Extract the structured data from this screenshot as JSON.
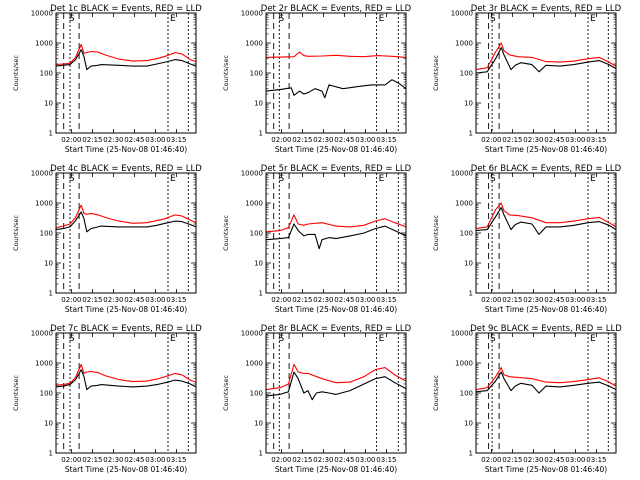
{
  "chart_data": [
    {
      "type": "line",
      "title": "Det 1c BLACK = Events, RED = LLD",
      "xlabel": "Start Time (25-Nov-08 01:46:40)",
      "ylabel": "Counts/sec",
      "yscale": "log",
      "ylim": [
        1,
        10000
      ],
      "yticks": [
        "1",
        "10",
        "100",
        "1000",
        "10000"
      ],
      "xticks": [
        "02:00",
        "02:15",
        "02:30",
        "02:45",
        "03:00",
        "03:15"
      ],
      "markers": [
        "S",
        "E"
      ],
      "series": [
        {
          "color": "#ff0000",
          "x": [
            0,
            0.05,
            0.1,
            0.14,
            0.18,
            0.2,
            0.22,
            0.25,
            0.3,
            0.35,
            0.45,
            0.55,
            0.65,
            0.72,
            0.78,
            0.85,
            0.9,
            0.96,
            1
          ],
          "y": [
            190,
            200,
            210,
            330,
            900,
            450,
            480,
            520,
            500,
            400,
            290,
            250,
            260,
            300,
            360,
            480,
            430,
            280,
            240
          ]
        },
        {
          "color": "#000000",
          "x": [
            0,
            0.05,
            0.1,
            0.14,
            0.18,
            0.2,
            0.22,
            0.25,
            0.3,
            0.32,
            0.45,
            0.55,
            0.65,
            0.72,
            0.78,
            0.85,
            0.9,
            0.96,
            1
          ],
          "y": [
            170,
            180,
            190,
            280,
            600,
            350,
            130,
            170,
            180,
            190,
            180,
            170,
            170,
            200,
            230,
            280,
            260,
            200,
            170
          ]
        }
      ]
    },
    {
      "type": "line",
      "title": "Det 2r BLACK = Events, RED = LLD",
      "xlabel": "Start Time (25-Nov-08 01:46:40)",
      "ylabel": "Counts/sec",
      "yscale": "log",
      "ylim": [
        1,
        10000
      ],
      "yticks": [
        "1",
        "10",
        "100",
        "1000",
        "10000"
      ],
      "xticks": [
        "02:00",
        "02:15",
        "02:30",
        "02:45",
        "03:00",
        "03:15"
      ],
      "markers": [
        "S",
        "E"
      ],
      "series": [
        {
          "color": "#ff0000",
          "x": [
            0,
            0.1,
            0.2,
            0.24,
            0.27,
            0.3,
            0.4,
            0.5,
            0.6,
            0.7,
            0.8,
            0.9,
            1
          ],
          "y": [
            330,
            340,
            350,
            500,
            380,
            360,
            370,
            390,
            360,
            350,
            380,
            360,
            330
          ]
        },
        {
          "color": "#000000",
          "x": [
            0,
            0.1,
            0.18,
            0.2,
            0.24,
            0.27,
            0.3,
            0.35,
            0.4,
            0.42,
            0.45,
            0.55,
            0.65,
            0.75,
            0.85,
            0.9,
            0.95,
            1
          ],
          "y": [
            25,
            28,
            32,
            18,
            25,
            20,
            22,
            30,
            25,
            15,
            40,
            30,
            35,
            40,
            40,
            60,
            45,
            30
          ]
        }
      ]
    },
    {
      "type": "line",
      "title": "Det 3r BLACK = Events, RED = LLD",
      "xlabel": "Start Time (25-Nov-08 01:46:40)",
      "ylabel": "Counts/sec",
      "yscale": "log",
      "ylim": [
        1,
        10000
      ],
      "yticks": [
        "1",
        "10",
        "100",
        "1000",
        "10000"
      ],
      "xticks": [
        "02:00",
        "02:15",
        "02:30",
        "02:45",
        "03:00",
        "03:15"
      ],
      "markers": [
        "S",
        "E"
      ],
      "series": [
        {
          "color": "#ff0000",
          "x": [
            0,
            0.08,
            0.14,
            0.18,
            0.2,
            0.24,
            0.3,
            0.4,
            0.5,
            0.6,
            0.7,
            0.8,
            0.88,
            0.95,
            1
          ],
          "y": [
            130,
            150,
            500,
            1000,
            550,
            400,
            350,
            330,
            240,
            230,
            250,
            300,
            330,
            230,
            170
          ]
        },
        {
          "color": "#000000",
          "x": [
            0,
            0.08,
            0.14,
            0.18,
            0.2,
            0.25,
            0.28,
            0.32,
            0.4,
            0.45,
            0.5,
            0.6,
            0.7,
            0.8,
            0.88,
            0.95,
            1
          ],
          "y": [
            100,
            110,
            300,
            700,
            400,
            130,
            180,
            220,
            190,
            110,
            180,
            170,
            190,
            230,
            260,
            190,
            140
          ]
        }
      ]
    },
    {
      "type": "line",
      "title": "Det 4c BLACK = Events, RED = LLD",
      "xlabel": "Start Time (25-Nov-08 01:46:40)",
      "ylabel": "Counts/sec",
      "yscale": "log",
      "ylim": [
        1,
        10000
      ],
      "yticks": [
        "1",
        "10",
        "100",
        "1000",
        "10000"
      ],
      "xticks": [
        "02:00",
        "02:15",
        "02:30",
        "02:45",
        "03:00",
        "03:15"
      ],
      "markers": [
        "S",
        "E"
      ],
      "series": [
        {
          "color": "#ff0000",
          "x": [
            0,
            0.05,
            0.1,
            0.14,
            0.18,
            0.2,
            0.22,
            0.25,
            0.3,
            0.35,
            0.45,
            0.55,
            0.65,
            0.72,
            0.78,
            0.85,
            0.9,
            0.96,
            1
          ],
          "y": [
            150,
            170,
            200,
            330,
            850,
            450,
            420,
            450,
            400,
            330,
            250,
            210,
            220,
            260,
            300,
            400,
            370,
            270,
            220
          ]
        },
        {
          "color": "#000000",
          "x": [
            0,
            0.05,
            0.1,
            0.14,
            0.18,
            0.2,
            0.22,
            0.25,
            0.3,
            0.32,
            0.45,
            0.55,
            0.65,
            0.72,
            0.78,
            0.85,
            0.9,
            0.96,
            1
          ],
          "y": [
            130,
            140,
            160,
            260,
            500,
            300,
            110,
            140,
            160,
            170,
            160,
            160,
            160,
            180,
            210,
            250,
            240,
            190,
            160
          ]
        }
      ]
    },
    {
      "type": "line",
      "title": "Det 5r BLACK = Events, RED = LLD",
      "xlabel": "Start Time (25-Nov-08 01:46:40)",
      "ylabel": "Counts/sec",
      "yscale": "log",
      "ylim": [
        1,
        10000
      ],
      "yticks": [
        "1",
        "10",
        "100",
        "1000",
        "10000"
      ],
      "xticks": [
        "02:00",
        "02:15",
        "02:30",
        "02:45",
        "03:00",
        "03:15"
      ],
      "markers": [
        "S",
        "E"
      ],
      "series": [
        {
          "color": "#ff0000",
          "x": [
            0,
            0.1,
            0.16,
            0.2,
            0.23,
            0.27,
            0.3,
            0.4,
            0.5,
            0.6,
            0.7,
            0.78,
            0.85,
            0.92,
            1
          ],
          "y": [
            110,
            120,
            150,
            400,
            200,
            180,
            200,
            220,
            170,
            160,
            180,
            250,
            300,
            220,
            160
          ]
        },
        {
          "color": "#000000",
          "x": [
            0,
            0.1,
            0.16,
            0.2,
            0.23,
            0.27,
            0.3,
            0.35,
            0.38,
            0.4,
            0.45,
            0.5,
            0.6,
            0.7,
            0.78,
            0.85,
            0.92,
            1
          ],
          "y": [
            60,
            65,
            70,
            200,
            120,
            80,
            90,
            90,
            30,
            60,
            70,
            65,
            80,
            100,
            140,
            170,
            120,
            80
          ]
        }
      ]
    },
    {
      "type": "line",
      "title": "Det 6r BLACK = Events, RED = LLD",
      "xlabel": "Start Time (25-Nov-08 01:46:40)",
      "ylabel": "Counts/sec",
      "yscale": "log",
      "ylim": [
        1,
        10000
      ],
      "yticks": [
        "1",
        "10",
        "100",
        "1000",
        "10000"
      ],
      "xticks": [
        "02:00",
        "02:15",
        "02:30",
        "02:45",
        "03:00",
        "03:15"
      ],
      "markers": [
        "S",
        "E"
      ],
      "series": [
        {
          "color": "#ff0000",
          "x": [
            0,
            0.08,
            0.14,
            0.18,
            0.2,
            0.24,
            0.3,
            0.4,
            0.5,
            0.6,
            0.7,
            0.8,
            0.88,
            0.95,
            1
          ],
          "y": [
            140,
            160,
            600,
            1000,
            550,
            400,
            380,
            320,
            220,
            220,
            250,
            300,
            330,
            220,
            160
          ]
        },
        {
          "color": "#000000",
          "x": [
            0,
            0.08,
            0.14,
            0.18,
            0.2,
            0.25,
            0.28,
            0.32,
            0.4,
            0.45,
            0.5,
            0.6,
            0.7,
            0.8,
            0.88,
            0.95,
            1
          ],
          "y": [
            120,
            130,
            350,
            700,
            400,
            130,
            190,
            230,
            200,
            90,
            160,
            160,
            180,
            220,
            240,
            180,
            130
          ]
        }
      ]
    },
    {
      "type": "line",
      "title": "Det 7c BLACK = Events, RED = LLD",
      "xlabel": "Start Time (25-Nov-08 01:46:40)",
      "ylabel": "Counts/sec",
      "yscale": "log",
      "ylim": [
        1,
        10000
      ],
      "yticks": [
        "1",
        "10",
        "100",
        "1000",
        "10000"
      ],
      "xticks": [
        "02:00",
        "02:15",
        "02:30",
        "02:45",
        "03:00",
        "03:15"
      ],
      "markers": [
        "S",
        "E"
      ],
      "series": [
        {
          "color": "#ff0000",
          "x": [
            0,
            0.05,
            0.1,
            0.14,
            0.18,
            0.2,
            0.22,
            0.25,
            0.3,
            0.35,
            0.45,
            0.55,
            0.65,
            0.72,
            0.78,
            0.85,
            0.9,
            0.96,
            1
          ],
          "y": [
            180,
            190,
            210,
            330,
            900,
            450,
            500,
            520,
            480,
            380,
            280,
            240,
            250,
            290,
            350,
            450,
            400,
            270,
            230
          ]
        },
        {
          "color": "#000000",
          "x": [
            0,
            0.05,
            0.1,
            0.14,
            0.18,
            0.2,
            0.22,
            0.25,
            0.3,
            0.32,
            0.45,
            0.55,
            0.65,
            0.72,
            0.78,
            0.85,
            0.9,
            0.96,
            1
          ],
          "y": [
            160,
            170,
            190,
            280,
            600,
            350,
            130,
            170,
            180,
            190,
            170,
            160,
            170,
            190,
            220,
            270,
            250,
            200,
            160
          ]
        }
      ]
    },
    {
      "type": "line",
      "title": "Det 8r BLACK = Events, RED = LLD",
      "xlabel": "Start Time (25-Nov-08 01:46:40)",
      "ylabel": "Counts/sec",
      "yscale": "log",
      "ylim": [
        1,
        10000
      ],
      "yticks": [
        "1",
        "10",
        "100",
        "1000",
        "10000"
      ],
      "xticks": [
        "02:00",
        "02:15",
        "02:30",
        "02:45",
        "03:00",
        "03:15"
      ],
      "markers": [
        "S",
        "E"
      ],
      "series": [
        {
          "color": "#ff0000",
          "x": [
            0,
            0.1,
            0.16,
            0.2,
            0.23,
            0.27,
            0.3,
            0.4,
            0.5,
            0.6,
            0.7,
            0.78,
            0.85,
            0.92,
            1
          ],
          "y": [
            130,
            150,
            200,
            900,
            500,
            450,
            450,
            300,
            220,
            230,
            350,
            600,
            700,
            400,
            250
          ]
        },
        {
          "color": "#000000",
          "x": [
            0,
            0.1,
            0.16,
            0.2,
            0.23,
            0.27,
            0.3,
            0.33,
            0.36,
            0.4,
            0.45,
            0.5,
            0.6,
            0.7,
            0.78,
            0.85,
            0.92,
            1
          ],
          "y": [
            80,
            90,
            110,
            500,
            300,
            100,
            120,
            60,
            100,
            110,
            100,
            90,
            120,
            200,
            300,
            350,
            220,
            140
          ]
        }
      ]
    },
    {
      "type": "line",
      "title": "Det 9c BLACK = Events, RED = LLD",
      "xlabel": "Start Time (25-Nov-08 01:46:40)",
      "ylabel": "Counts/sec",
      "yscale": "log",
      "ylim": [
        1,
        10000
      ],
      "yticks": [
        "1",
        "10",
        "100",
        "1000",
        "10000"
      ],
      "xticks": [
        "02:00",
        "02:15",
        "02:30",
        "02:45",
        "03:00",
        "03:15"
      ],
      "markers": [
        "S",
        "E"
      ],
      "series": [
        {
          "color": "#ff0000",
          "x": [
            0,
            0.08,
            0.14,
            0.18,
            0.2,
            0.24,
            0.3,
            0.4,
            0.5,
            0.6,
            0.7,
            0.8,
            0.88,
            0.95,
            1
          ],
          "y": [
            130,
            150,
            350,
            700,
            400,
            350,
            330,
            300,
            230,
            220,
            240,
            280,
            320,
            230,
            170
          ]
        },
        {
          "color": "#000000",
          "x": [
            0,
            0.08,
            0.14,
            0.18,
            0.2,
            0.25,
            0.28,
            0.32,
            0.4,
            0.45,
            0.5,
            0.6,
            0.7,
            0.8,
            0.88,
            0.95,
            1
          ],
          "y": [
            110,
            120,
            250,
            500,
            300,
            120,
            170,
            210,
            180,
            100,
            170,
            160,
            180,
            210,
            230,
            170,
            130
          ]
        }
      ]
    }
  ]
}
